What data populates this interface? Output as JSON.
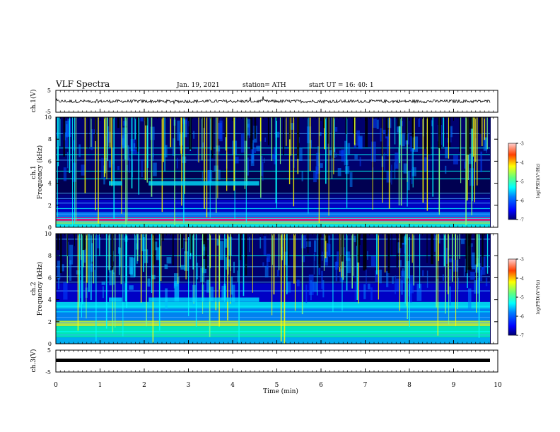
{
  "header": {
    "title": "VLF Spectra",
    "date": "Jan. 19, 2021",
    "station": "station= ATH",
    "start": "start  UT =   16: 40: 1"
  },
  "chart_data": [
    {
      "type": "line",
      "panel": "ch1-waveform",
      "ylabel": "ch.1(V)",
      "yticks": [
        "5",
        "-5"
      ],
      "ylim": [
        -5,
        5
      ],
      "xlim": [
        0,
        10
      ],
      "series": [
        {
          "values": "noisy signal centered near 0 V"
        }
      ]
    },
    {
      "type": "heatmap",
      "panel": "ch1-spectrogram",
      "ylabel": "ch.1\nFrequency (kHz)",
      "yticks": [
        "0",
        "2",
        "4",
        "6",
        "8",
        "10"
      ],
      "ylim": [
        0,
        10
      ],
      "xlim": [
        0,
        10
      ],
      "colorbar": {
        "label": "log(PSD)(V²/Hz)",
        "ticks": [
          "-3",
          "-4",
          "-5",
          "-6",
          "-7"
        ],
        "range": [
          -7,
          -3
        ]
      }
    },
    {
      "type": "heatmap",
      "panel": "ch2-spectrogram",
      "ylabel": "ch.2\nFrequency (kHz)",
      "yticks": [
        "0",
        "2",
        "4",
        "6",
        "8",
        "10"
      ],
      "ylim": [
        0,
        10
      ],
      "xlim": [
        0,
        10
      ],
      "colorbar": {
        "label": "log(PSD)(V²/Hz)",
        "ticks": [
          "-3",
          "-4",
          "-5",
          "-6",
          "-7"
        ],
        "range": [
          -7,
          -3
        ]
      }
    },
    {
      "type": "line",
      "panel": "ch3-waveform",
      "ylabel": "ch.3(V)",
      "yticks": [
        "5",
        "-5"
      ],
      "ylim": [
        -5,
        5
      ],
      "xlim": [
        0,
        10
      ],
      "series": [
        {
          "values": "flat line near 0 V"
        }
      ]
    }
  ],
  "xaxis": {
    "label": "Time (min)",
    "ticks": [
      "0",
      "1",
      "2",
      "3",
      "4",
      "5",
      "6",
      "7",
      "8",
      "9",
      "10"
    ]
  },
  "colors": {
    "jet": [
      "#000080",
      "#0000ff",
      "#00a0ff",
      "#00ffff",
      "#80ff80",
      "#ffff00",
      "#ff8000",
      "#ff0000",
      "#800000"
    ]
  }
}
